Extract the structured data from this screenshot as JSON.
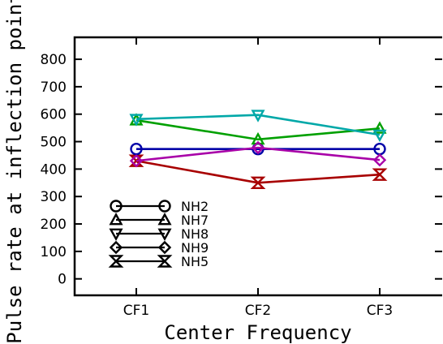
{
  "chart_data": {
    "type": "line",
    "title": "",
    "xlabel": "Center Frequency",
    "ylabel": "Pulse rate at inflection point",
    "categories": [
      "CF1",
      "CF2",
      "CF3"
    ],
    "ylim": [
      -60,
      880
    ],
    "yticks": [
      0,
      100,
      200,
      300,
      400,
      500,
      600,
      700,
      800
    ],
    "grid": false,
    "legend": "lower-left",
    "series": [
      {
        "name": "NH2",
        "marker": "circle",
        "color": "#0000a8",
        "values": [
          473,
          473,
          473
        ]
      },
      {
        "name": "NH7",
        "marker": "triangle-up",
        "color": "#00a000",
        "values": [
          578,
          508,
          548
        ]
      },
      {
        "name": "NH8",
        "marker": "triangle-down",
        "color": "#00a8a8",
        "values": [
          582,
          597,
          525
        ]
      },
      {
        "name": "NH9",
        "marker": "diamond",
        "color": "#a800a8",
        "values": [
          430,
          478,
          433
        ]
      },
      {
        "name": "NH5",
        "marker": "hourglass",
        "color": "#a80000",
        "values": [
          430,
          350,
          380
        ]
      }
    ],
    "legend_series_order": [
      "NH2",
      "NH7",
      "NH8",
      "NH9",
      "NH5"
    ]
  }
}
